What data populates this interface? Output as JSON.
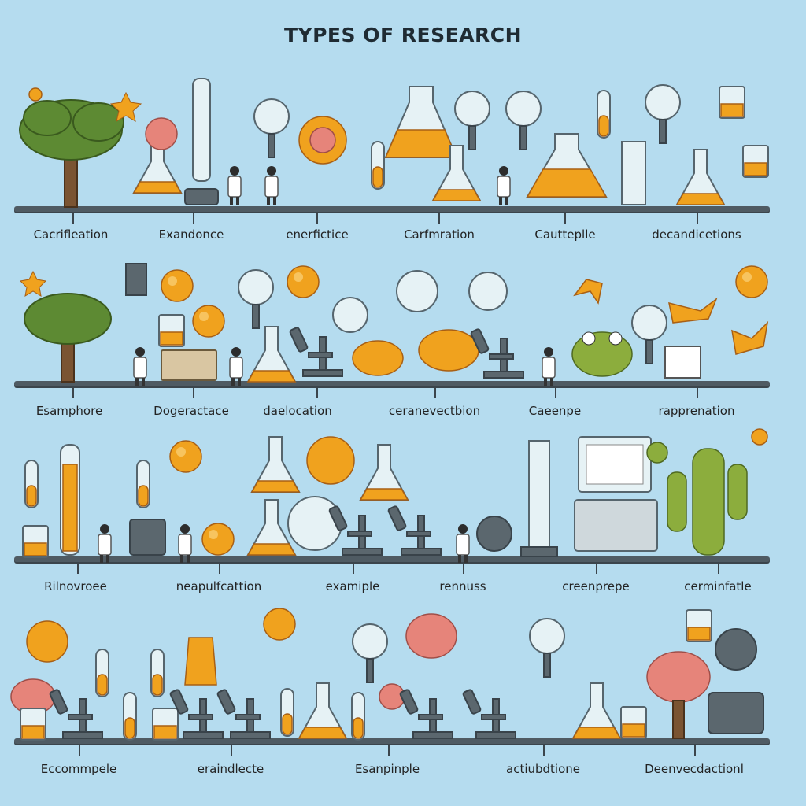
{
  "title": "TYPES OF RESEARCH",
  "rows": [
    {
      "labels": [
        "Cacrifleation",
        "Exandonce",
        "enerfictice",
        "Carfmration",
        "Cautteplle",
        "decandicetions"
      ]
    },
    {
      "labels": [
        "Esamphore",
        "Dogeractace",
        "daelocation",
        "ceranevectbion",
        "Caeenpe",
        "rapprenation"
      ]
    },
    {
      "labels": [
        "Rilnovroee",
        "neapulfcattion",
        "examiple",
        "rennuss",
        "creenprepe",
        "cerminfatle"
      ]
    },
    {
      "labels": [
        "Eccommpele",
        "eraindlecte",
        "Esanpinple",
        "actiubdtione",
        "Deenvecdactionl"
      ]
    }
  ],
  "colors": {
    "background": "#b5dcef",
    "shelf": "#4f5b63",
    "glass": "#e6f2f5",
    "liquid_orange": "#f0a21e",
    "liquid_green": "#8cad3d",
    "tree": "#5d8a33"
  }
}
